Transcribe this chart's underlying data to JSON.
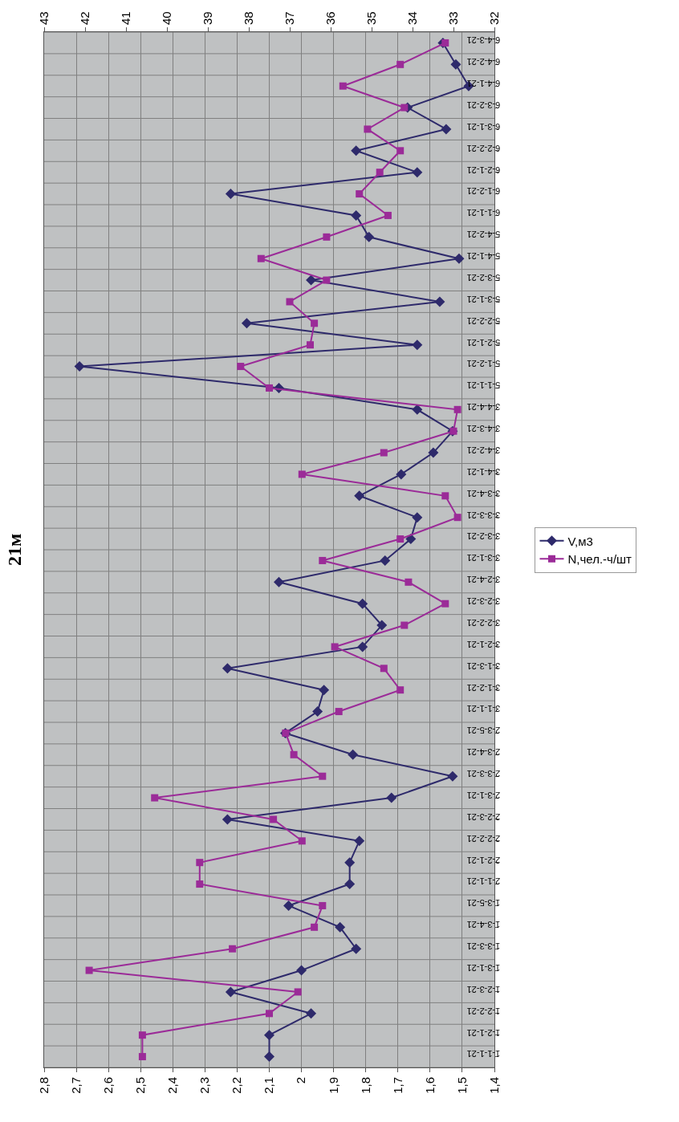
{
  "chart_data": {
    "type": "line",
    "title": "21м",
    "orientation": "horizontal",
    "categories": [
      "6-4-3-21",
      "6-4-2-21",
      "6-4-1-21",
      "6-3-2-21",
      "6-3-1-21",
      "6-2-2-21",
      "6-2-1-21",
      "6-1-2-21",
      "6-1-1-21",
      "5-4-2-21",
      "5-4-1-21",
      "5-3-2-21",
      "5-3-1-21",
      "5-2-2-21",
      "5-2-1-21",
      "5-1-2-21",
      "5-1-1-21",
      "3-4-4-21",
      "3-4-3-21",
      "3-4-2-21",
      "3-4-1-21",
      "3-3-4-21",
      "3-3-3-21",
      "3-3-2-21",
      "3-3-1-21",
      "3-2-4-21",
      "3-2-3-21",
      "3-2-2-21",
      "3-2-1-21",
      "3-1-3-21",
      "3-1-2-21",
      "3-1-1-21",
      "2-3-5-21",
      "2-3-4-21",
      "2-3-3-21",
      "2-3-1-21",
      "2-2-3-21",
      "2-2-2-21",
      "2-2-1-21",
      "2-1-1-21",
      "1-3-5-21",
      "1-3-4-21",
      "1-3-3-21",
      "1-3-1-21",
      "1-2-3-21",
      "1-2-2-21",
      "1-2-1-21",
      "1-1-1-21"
    ],
    "series": [
      {
        "name": "V,м3",
        "color": "#2e2a6b",
        "marker": "diamond",
        "values": [
          1.56,
          1.52,
          1.48,
          1.67,
          1.55,
          1.83,
          1.64,
          2.22,
          1.83,
          1.79,
          1.51,
          1.97,
          1.57,
          2.17,
          1.64,
          2.69,
          2.07,
          1.64,
          1.53,
          1.59,
          1.69,
          1.82,
          1.64,
          1.66,
          1.74,
          2.07,
          1.81,
          1.75,
          1.81,
          2.23,
          1.93,
          1.95,
          2.05,
          1.84,
          1.53,
          1.72,
          2.23,
          1.82,
          1.85,
          1.85,
          2.04,
          1.88,
          1.83,
          2.0,
          2.22,
          1.97,
          2.1,
          2.1
        ]
      },
      {
        "name": "N,чел.-ч/шт",
        "color": "#9b2b98",
        "marker": "square",
        "axis": "x2",
        "values": [
          33.2,
          34.3,
          35.7,
          34.2,
          35.1,
          34.3,
          34.8,
          35.3,
          34.6,
          36.1,
          37.7,
          36.1,
          37.0,
          36.4,
          36.5,
          38.2,
          37.5,
          32.9,
          33.0,
          34.7,
          36.7,
          33.2,
          32.9,
          34.3,
          36.2,
          34.1,
          33.2,
          34.2,
          35.9,
          34.7,
          34.3,
          35.8,
          37.1,
          36.9,
          36.2,
          40.3,
          37.4,
          36.7,
          39.2,
          39.2,
          36.2,
          36.4,
          38.4,
          41.9,
          36.8,
          37.5,
          40.6,
          40.6
        ]
      }
    ],
    "xlim": [
      2.8,
      1.4
    ],
    "xticks": [
      {
        "value": 2.8,
        "label": "2,8"
      },
      {
        "value": 2.7,
        "label": "2,7"
      },
      {
        "value": 2.6,
        "label": "2,6"
      },
      {
        "value": 2.5,
        "label": "2,5"
      },
      {
        "value": 2.4,
        "label": "2,4"
      },
      {
        "value": 2.3,
        "label": "2,3"
      },
      {
        "value": 2.2,
        "label": "2,2"
      },
      {
        "value": 2.1,
        "label": "2,1"
      },
      2,
      {
        "value": 1.9,
        "label": "1,9"
      },
      {
        "value": 1.8,
        "label": "1,8"
      },
      {
        "value": 1.7,
        "label": "1,7"
      },
      {
        "value": 1.6,
        "label": "1,6"
      },
      {
        "value": 1.5,
        "label": "1,5"
      },
      {
        "value": 1.4,
        "label": "1,4"
      }
    ],
    "x2lim": [
      43,
      32
    ],
    "x2ticks": [
      43,
      42,
      41,
      40,
      39,
      38,
      37,
      36,
      35,
      34,
      33,
      32
    ],
    "grid": true,
    "legend": "right",
    "line_style": "solid"
  }
}
